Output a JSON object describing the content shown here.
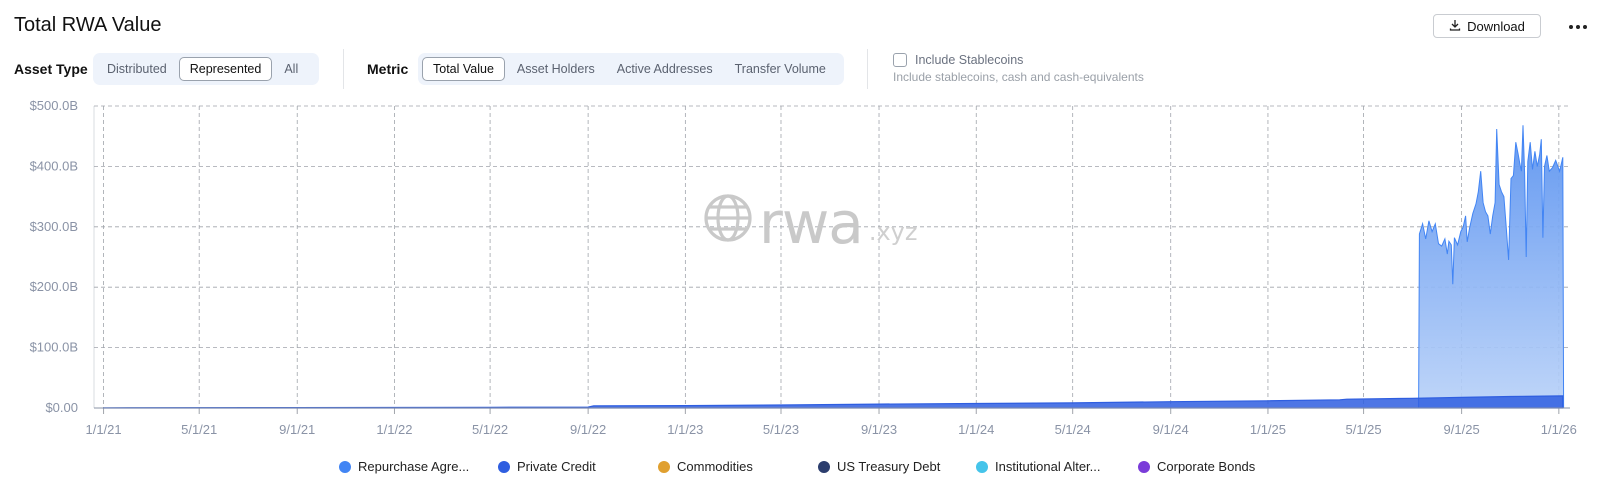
{
  "header": {
    "title": "Total RWA Value",
    "download_label": "Download",
    "download_icon": "download-icon",
    "more_icon": "more-horizontal-icon"
  },
  "controls": {
    "asset_type": {
      "label": "Asset Type",
      "options": [
        "Distributed",
        "Represented",
        "All"
      ],
      "selected": "Represented"
    },
    "metric": {
      "label": "Metric",
      "options": [
        "Total Value",
        "Asset Holders",
        "Active Addresses",
        "Transfer Volume"
      ],
      "selected": "Total Value"
    },
    "stablecoins": {
      "label": "Include Stablecoins",
      "description": "Include stablecoins, cash and cash-equivalents",
      "checked": false
    }
  },
  "watermark": {
    "main": "rwa",
    "suffix": ".xyz",
    "icon": "globe-icon"
  },
  "chart_data": {
    "type": "area",
    "y_tick_labels": [
      "$0.00",
      "$100.0B",
      "$200.0B",
      "$300.0B",
      "$400.0B",
      "$500.0B"
    ],
    "y_ticks": [
      0,
      100,
      200,
      300,
      400,
      500
    ],
    "ylim": [
      0,
      500
    ],
    "x_tick_labels": [
      "1/1/21",
      "5/1/21",
      "9/1/21",
      "1/1/22",
      "5/1/22",
      "9/1/22",
      "1/1/23",
      "5/1/23",
      "9/1/23",
      "1/1/24",
      "5/1/24",
      "9/1/24",
      "1/1/25",
      "5/1/25",
      "9/1/25",
      "1/1/26"
    ],
    "x_ticks": [
      "2021-01-01",
      "2021-05-01",
      "2021-09-01",
      "2022-01-01",
      "2022-05-01",
      "2022-09-01",
      "2023-01-01",
      "2023-05-01",
      "2023-09-01",
      "2024-01-01",
      "2024-05-01",
      "2024-09-01",
      "2025-01-01",
      "2025-05-01",
      "2025-09-01",
      "2026-01-01"
    ],
    "xlim": [
      "2020-12-20",
      "2026-01-15"
    ],
    "grid": true,
    "legend_position": "bottom",
    "series": [
      {
        "name": "Repurchase Agre...",
        "color": "#4285f4",
        "points": [
          [
            "2025-07-09",
            0
          ],
          [
            "2025-07-10",
            288
          ],
          [
            "2025-07-14",
            305
          ],
          [
            "2025-07-18",
            280
          ],
          [
            "2025-07-22",
            310
          ],
          [
            "2025-07-26",
            292
          ],
          [
            "2025-07-30",
            305
          ],
          [
            "2025-08-03",
            272
          ],
          [
            "2025-08-07",
            268
          ],
          [
            "2025-08-11",
            280
          ],
          [
            "2025-08-14",
            255
          ],
          [
            "2025-08-16",
            276
          ],
          [
            "2025-08-19",
            270
          ],
          [
            "2025-08-21",
            205
          ],
          [
            "2025-08-23",
            282
          ],
          [
            "2025-08-27",
            270
          ],
          [
            "2025-08-31",
            292
          ],
          [
            "2025-09-03",
            300
          ],
          [
            "2025-09-06",
            318
          ],
          [
            "2025-09-08",
            275
          ],
          [
            "2025-09-11",
            298
          ],
          [
            "2025-09-15",
            322
          ],
          [
            "2025-09-19",
            338
          ],
          [
            "2025-09-22",
            358
          ],
          [
            "2025-09-25",
            392
          ],
          [
            "2025-09-28",
            340
          ],
          [
            "2025-10-01",
            325
          ],
          [
            "2025-10-04",
            318
          ],
          [
            "2025-10-07",
            288
          ],
          [
            "2025-10-10",
            318
          ],
          [
            "2025-10-13",
            340
          ],
          [
            "2025-10-15",
            462
          ],
          [
            "2025-10-18",
            370
          ],
          [
            "2025-10-21",
            358
          ],
          [
            "2025-10-24",
            350
          ],
          [
            "2025-10-27",
            300
          ],
          [
            "2025-10-30",
            245
          ],
          [
            "2025-11-02",
            380
          ],
          [
            "2025-11-05",
            385
          ],
          [
            "2025-11-08",
            440
          ],
          [
            "2025-11-11",
            420
          ],
          [
            "2025-11-13",
            405
          ],
          [
            "2025-11-15",
            392
          ],
          [
            "2025-11-17",
            468
          ],
          [
            "2025-11-19",
            390
          ],
          [
            "2025-11-21",
            250
          ],
          [
            "2025-11-23",
            408
          ],
          [
            "2025-11-26",
            440
          ],
          [
            "2025-11-29",
            395
          ],
          [
            "2025-12-02",
            425
          ],
          [
            "2025-12-05",
            400
          ],
          [
            "2025-12-08",
            420
          ],
          [
            "2025-12-10",
            445
          ],
          [
            "2025-12-12",
            282
          ],
          [
            "2025-12-14",
            400
          ],
          [
            "2025-12-17",
            418
          ],
          [
            "2025-12-20",
            392
          ],
          [
            "2025-12-24",
            398
          ],
          [
            "2025-12-28",
            410
          ],
          [
            "2026-01-02",
            392
          ],
          [
            "2026-01-06",
            415
          ],
          [
            "2026-01-07",
            0
          ]
        ]
      },
      {
        "name": "Private Credit",
        "color": "#2f5ee0",
        "points": [
          [
            "2021-01-01",
            0.3
          ],
          [
            "2021-09-01",
            0.6
          ],
          [
            "2022-05-01",
            1.2
          ],
          [
            "2022-09-01",
            1.5
          ],
          [
            "2022-09-08",
            3.5
          ],
          [
            "2023-01-01",
            4.0
          ],
          [
            "2023-05-01",
            5.0
          ],
          [
            "2023-09-01",
            6.5
          ],
          [
            "2024-01-01",
            7.5
          ],
          [
            "2024-05-01",
            8.5
          ],
          [
            "2024-09-01",
            10.5
          ],
          [
            "2025-01-01",
            12.0
          ],
          [
            "2025-04-01",
            13.5
          ],
          [
            "2025-04-10",
            14.5
          ],
          [
            "2025-07-01",
            16.0
          ],
          [
            "2025-09-01",
            17.5
          ],
          [
            "2025-11-01",
            19.0
          ],
          [
            "2026-01-06",
            20.0
          ]
        ]
      },
      {
        "name": "Commodities",
        "color": "#e0a030",
        "points": []
      },
      {
        "name": "US Treasury Debt",
        "color": "#2c3e6e",
        "points": []
      },
      {
        "name": "Institutional Alter...",
        "color": "#45c4ea",
        "points": []
      },
      {
        "name": "Corporate Bonds",
        "color": "#7a3cd9",
        "points": []
      }
    ]
  }
}
